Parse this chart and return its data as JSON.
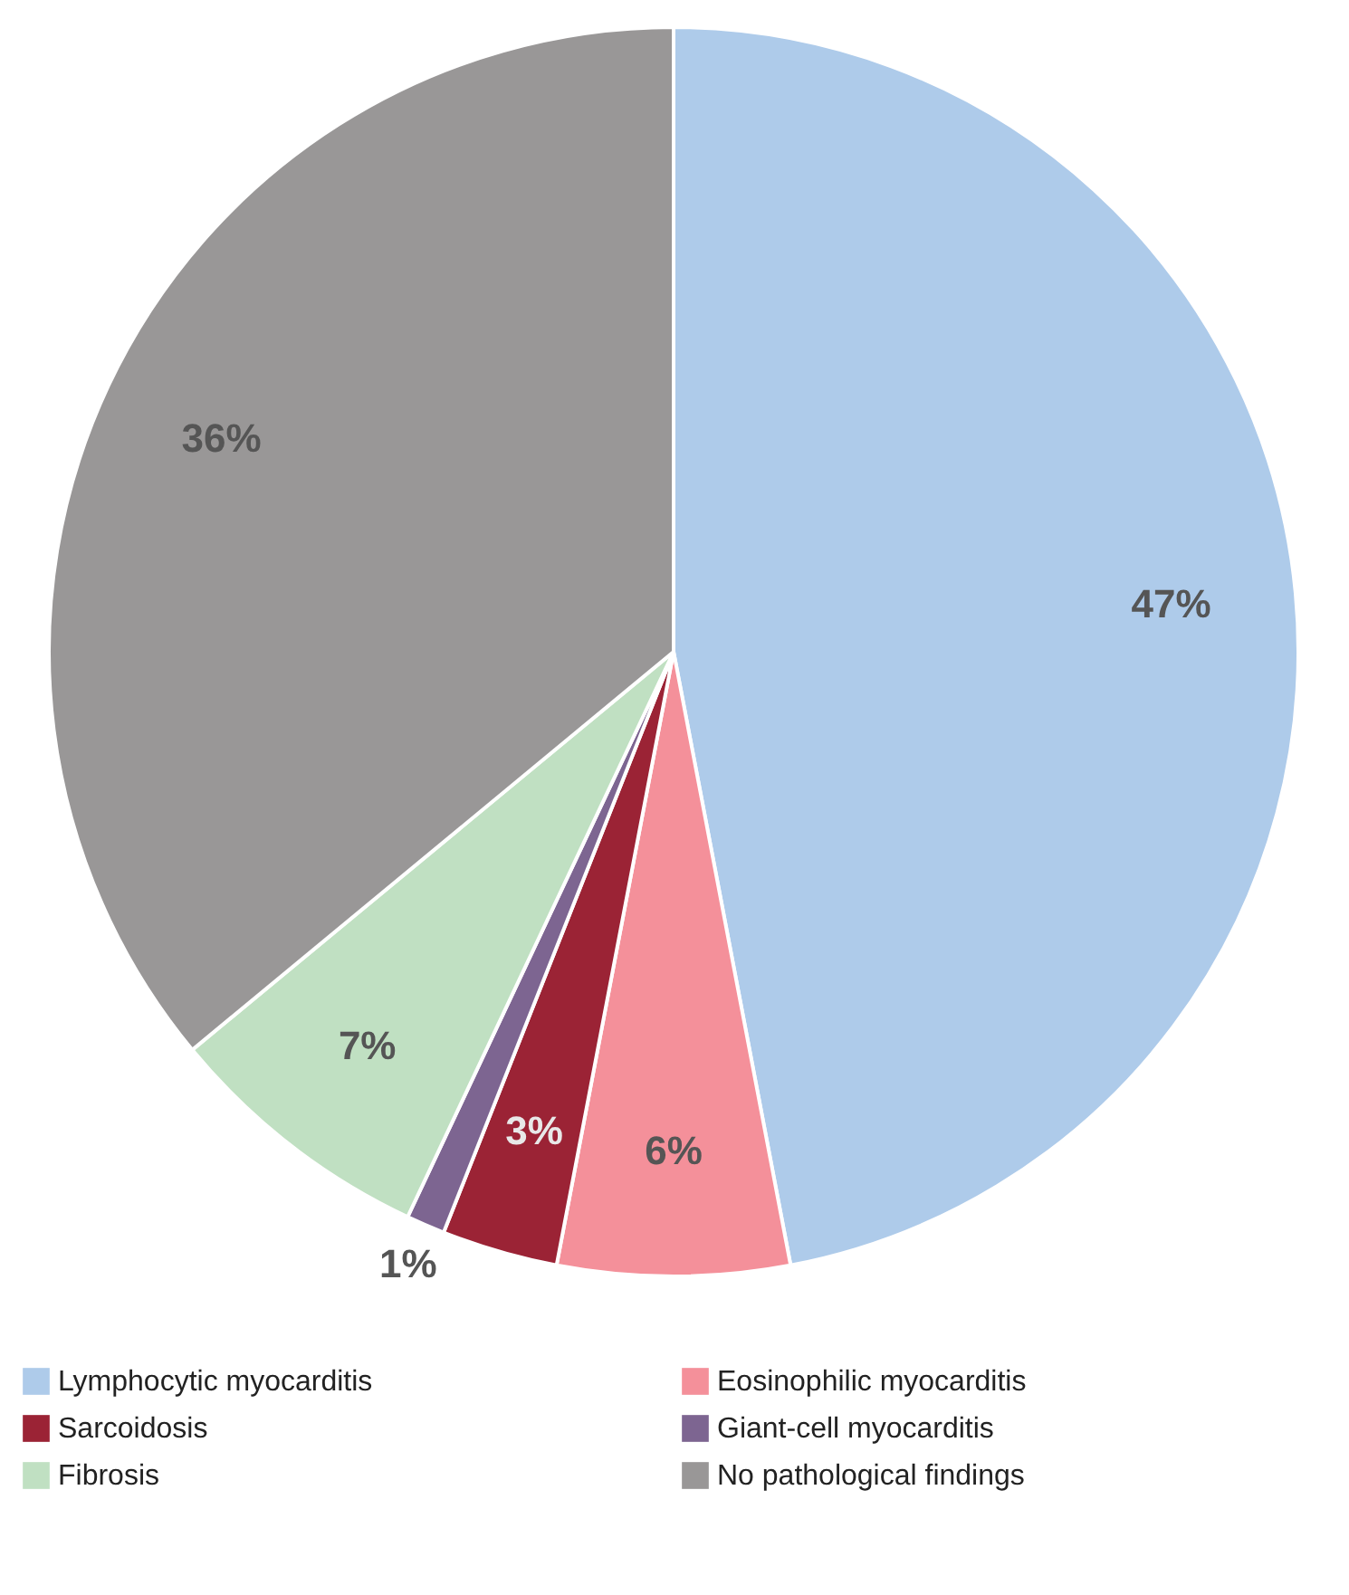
{
  "chart_data": {
    "type": "pie",
    "categories": [
      "Lymphocytic myocarditis",
      "Eosinophilic myocarditis",
      "Sarcoidosis",
      "Giant-cell myocarditis",
      "Fibrosis",
      "No pathological findings"
    ],
    "values": [
      47,
      6,
      3,
      1,
      7,
      36
    ],
    "colors": [
      "#aecbea",
      "#f4909a",
      "#9b2335",
      "#7d6591",
      "#c0e0c2",
      "#999797"
    ],
    "value_labels": [
      "47%",
      "6%",
      "3%",
      "1%",
      "7%",
      "36%"
    ],
    "legend": "bottom"
  }
}
